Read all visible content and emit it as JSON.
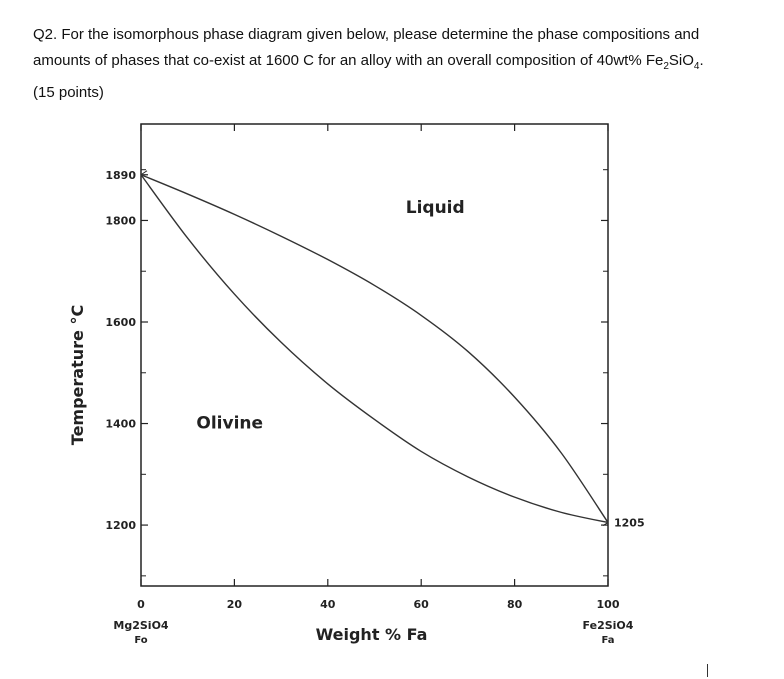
{
  "question": {
    "line1": "Q2. For the isomorphous phase diagram given below, please determine the phase compositions and",
    "line2_a": "amounts of phases that co-exist at 1600 C for an alloy with an overall composition of 40wt% Fe",
    "line2_sub1": "2",
    "line2_b": "SiO",
    "line2_sub2": "4",
    "line2_c": ".",
    "line3": "(15 points)"
  },
  "chart_data": {
    "type": "line",
    "title": "",
    "xlabel": "Weight % Fa",
    "ylabel": "Temperature °C",
    "xlim": [
      0,
      100
    ],
    "ylim": [
      1080,
      1990
    ],
    "x_ticks": [
      0,
      20,
      40,
      60,
      80,
      100
    ],
    "y_ticks": [
      1200,
      1400,
      1600,
      1800,
      1890
    ],
    "y_tick_labels": [
      "1200",
      "1400",
      "1600",
      "1800",
      "1890"
    ],
    "end_label_right_temp": "1205",
    "end_label_right_temp_value": 1205,
    "left_end_label": "Mg2SiO4",
    "left_end_sub": "Fo",
    "right_end_label": "Fe2SiO4",
    "right_end_sub": "Fa",
    "series": [
      {
        "name": "Liquidus",
        "x": [
          0,
          10,
          20,
          30,
          40,
          50,
          60,
          70,
          80,
          90,
          100
        ],
        "y": [
          1890,
          1852,
          1812,
          1769,
          1723,
          1672,
          1613,
          1542,
          1452,
          1342,
          1205
        ]
      },
      {
        "name": "Solidus",
        "x": [
          0,
          10,
          20,
          30,
          40,
          50,
          60,
          70,
          80,
          90,
          100
        ],
        "y": [
          1890,
          1765,
          1655,
          1560,
          1478,
          1408,
          1345,
          1295,
          1255,
          1225,
          1205
        ]
      }
    ],
    "region_labels": [
      {
        "text": "Liquid",
        "x": 63,
        "y": 1815
      },
      {
        "text": "Olivine",
        "x": 19,
        "y": 1390
      }
    ],
    "grid": false
  }
}
